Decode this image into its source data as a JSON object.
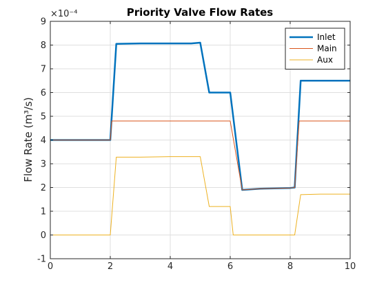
{
  "chart_data": {
    "type": "line",
    "title": "Priority Valve Flow Rates",
    "xlabel": "",
    "ylabel": "Flow Rate (m³/s)",
    "y_exponent_label": "×10⁻⁴",
    "xlim": [
      0,
      10
    ],
    "ylim": [
      -1,
      9
    ],
    "x_ticks": [
      0,
      2,
      4,
      6,
      8,
      10
    ],
    "y_ticks": [
      -1,
      0,
      1,
      2,
      3,
      4,
      5,
      6,
      7,
      8,
      9
    ],
    "grid": true,
    "legend_position": "top-right",
    "series": [
      {
        "name": "Inlet",
        "color": "#0072bd",
        "x": [
          0,
          2.0,
          2.2,
          3.0,
          4.0,
          4.7,
          5.0,
          5.3,
          5.6,
          6.0,
          6.4,
          7.0,
          8.0,
          8.15,
          8.35,
          8.7,
          10.0
        ],
        "y": [
          4.0,
          4.0,
          8.05,
          8.07,
          8.07,
          8.07,
          8.1,
          6.0,
          6.0,
          6.0,
          1.9,
          1.95,
          1.98,
          2.0,
          6.5,
          6.5,
          6.5
        ]
      },
      {
        "name": "Main",
        "color": "#d95319",
        "x": [
          0,
          2.0,
          2.05,
          4.0,
          6.0,
          6.4,
          7.0,
          8.0,
          8.15,
          8.3,
          10.0
        ],
        "y": [
          4.0,
          4.0,
          4.8,
          4.8,
          4.8,
          1.9,
          1.95,
          1.98,
          2.0,
          4.8,
          4.8
        ]
      },
      {
        "name": "Aux",
        "color": "#edb120",
        "x": [
          0,
          2.0,
          2.2,
          3.0,
          4.0,
          5.0,
          5.3,
          5.7,
          6.0,
          6.1,
          7.0,
          8.0,
          8.15,
          8.35,
          9.0,
          10.0
        ],
        "y": [
          0.0,
          0.0,
          3.28,
          3.28,
          3.3,
          3.3,
          1.2,
          1.2,
          1.2,
          0.0,
          0.0,
          0.0,
          0.0,
          1.7,
          1.72,
          1.72
        ]
      }
    ]
  }
}
